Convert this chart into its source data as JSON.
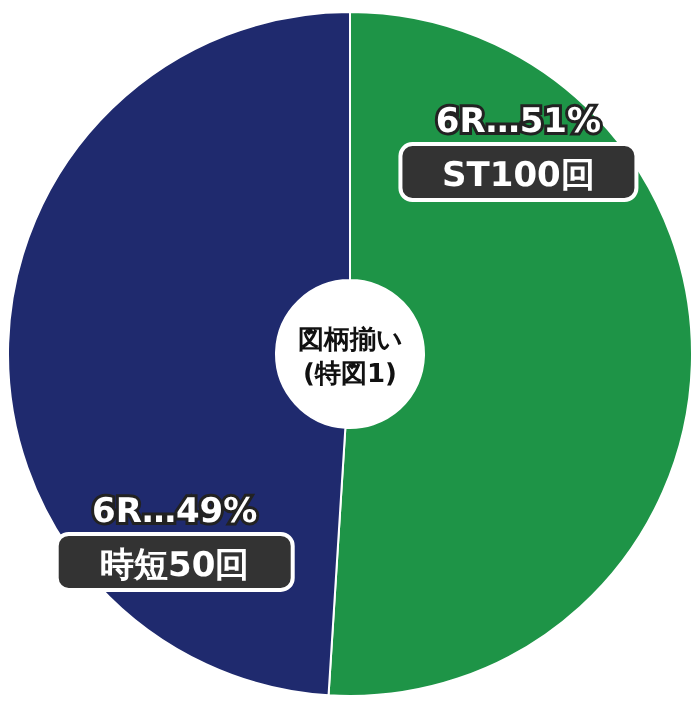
{
  "chart_data": {
    "type": "donut",
    "categories": [
      "ST100回",
      "時短50回"
    ],
    "values": [
      51,
      49
    ],
    "value_labels": [
      "6R…51%",
      "6R…49%"
    ],
    "colors": [
      "#1e9447",
      "#1f2a6e"
    ],
    "annotations": [
      "図柄揃い\n(特図1)"
    ]
  }
}
